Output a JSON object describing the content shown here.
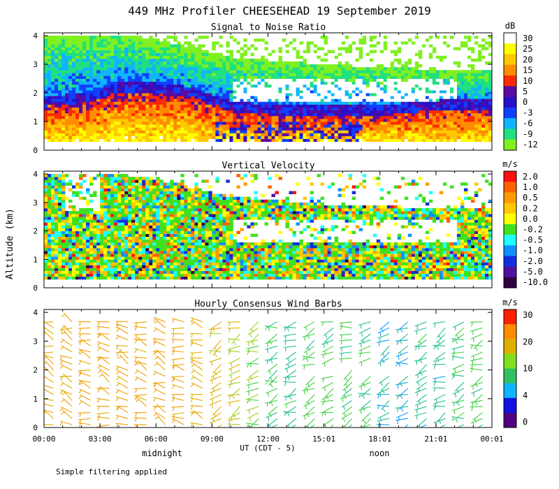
{
  "title": "449 MHz Profiler CHEESEHEAD 19 September 2019",
  "ylabel": "Altitude (km)",
  "xlabel": "UT  (CDT - 5)",
  "local_labels": [
    "midnight",
    "noon"
  ],
  "footnote": "Simple filtering applied",
  "chart_data": [
    {
      "type": "heatmap",
      "title": "Signal to Noise Ratio",
      "units": "dB",
      "x_ticks": [
        "00:00",
        "03:00",
        "06:00",
        "09:00",
        "12:00",
        "15:01",
        "18:01",
        "21:01",
        "00:01"
      ],
      "y_ticks": [
        "0",
        "1",
        "2",
        "3",
        "4"
      ],
      "ylim": [
        0,
        4.1
      ],
      "data_extent_km": [
        0.3,
        4.0
      ],
      "colorbar": {
        "labels": [
          "30",
          "25",
          "20",
          "15",
          "10",
          "5",
          "0",
          "-3",
          "-6",
          "-9",
          "-12"
        ],
        "colors": [
          "#ffffff",
          "#ffff00",
          "#ffc800",
          "#ff8c00",
          "#ff2800",
          "#5a0aa0",
          "#2810c8",
          "#1040ff",
          "#10b4ff",
          "#20e080",
          "#80f020"
        ]
      },
      "description_profile": {
        "hours": [
          0,
          2,
          4,
          6,
          8,
          10,
          12,
          14,
          16,
          18,
          20,
          22,
          24
        ],
        "strong_echo_top_km": [
          1.5,
          1.6,
          2.0,
          2.0,
          1.8,
          1.3,
          1.2,
          1.2,
          1.2,
          1.2,
          1.3,
          1.4,
          1.4
        ],
        "weak_echo_top_km": [
          4.0,
          4.0,
          4.0,
          3.8,
          3.5,
          3.2,
          3.1,
          3.0,
          2.9,
          2.9,
          2.8,
          2.8,
          2.8
        ]
      }
    },
    {
      "type": "heatmap",
      "title": "Vertical Velocity",
      "units": "m/s",
      "x_ticks": [
        "00:00",
        "03:00",
        "06:00",
        "09:00",
        "12:00",
        "15:01",
        "18:01",
        "21:01",
        "00:01"
      ],
      "y_ticks": [
        "0",
        "1",
        "2",
        "3",
        "4"
      ],
      "ylim": [
        0,
        4.1
      ],
      "colorbar": {
        "labels": [
          "2.0",
          "1.0",
          "0.5",
          "0.2",
          "0.0",
          "-0.2",
          "-0.5",
          "-1.0",
          "-2.0",
          "-5.0",
          "-10.0"
        ],
        "colors": [
          "#ff1010",
          "#ff6000",
          "#ff9a00",
          "#ffc800",
          "#ffff00",
          "#40e020",
          "#20ffff",
          "#1090ff",
          "#1030e0",
          "#5010a0",
          "#300040"
        ]
      }
    },
    {
      "type": "scatter",
      "title": "Hourly Consensus Wind Barbs",
      "units": "m/s",
      "x_ticks": [
        "00:00",
        "03:00",
        "06:00",
        "09:00",
        "12:00",
        "15:01",
        "18:01",
        "21:01",
        "00:01"
      ],
      "y_ticks": [
        "0",
        "1",
        "2",
        "3",
        "4"
      ],
      "ylim": [
        0,
        4.1
      ],
      "colorbar": {
        "labels": [
          "30",
          "20",
          "10",
          "4",
          "0"
        ],
        "colors": [
          "#ff2000",
          "#ff8c00",
          "#e0b000",
          "#80e020",
          "#30c060",
          "#10b4ff",
          "#1010e0",
          "#500080"
        ]
      },
      "wind_speed_by_hour_ms": [
        20,
        20,
        21,
        21,
        21,
        21,
        20,
        19,
        17,
        16,
        13,
        11,
        8,
        7,
        9,
        9,
        8,
        8,
        6,
        6,
        7,
        7,
        8,
        9
      ]
    }
  ]
}
